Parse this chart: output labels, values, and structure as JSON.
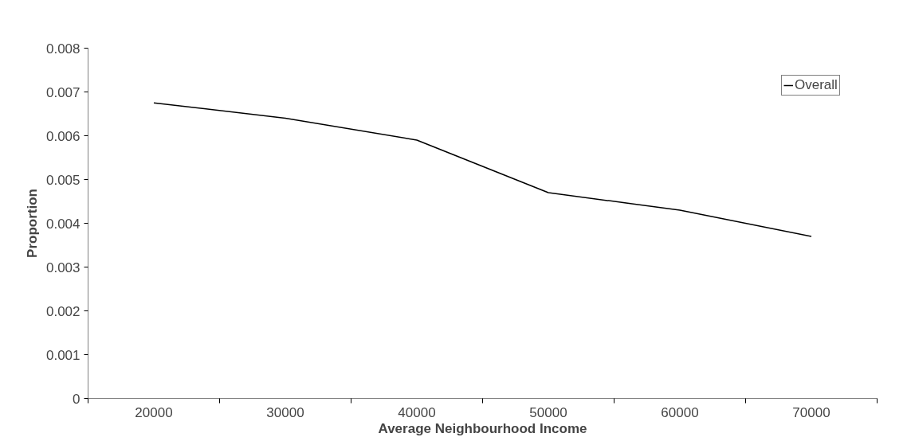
{
  "chart_data": {
    "type": "line",
    "xlabel": "Average Neighbourhood Income",
    "ylabel": "Proportion",
    "categories": [
      "20000",
      "30000",
      "40000",
      "50000",
      "60000",
      "70000"
    ],
    "series": [
      {
        "name": "Overall",
        "color": "#000000",
        "values": [
          0.00675,
          0.0064,
          0.0059,
          0.0047,
          0.0043,
          0.0037
        ]
      }
    ],
    "ylim": [
      0,
      0.008
    ],
    "yticks": [
      0,
      0.001,
      0.002,
      0.003,
      0.004,
      0.005,
      0.006,
      0.007,
      0.008
    ],
    "grid": false,
    "legend": "top right",
    "marker": "none",
    "line_style": "solid"
  }
}
